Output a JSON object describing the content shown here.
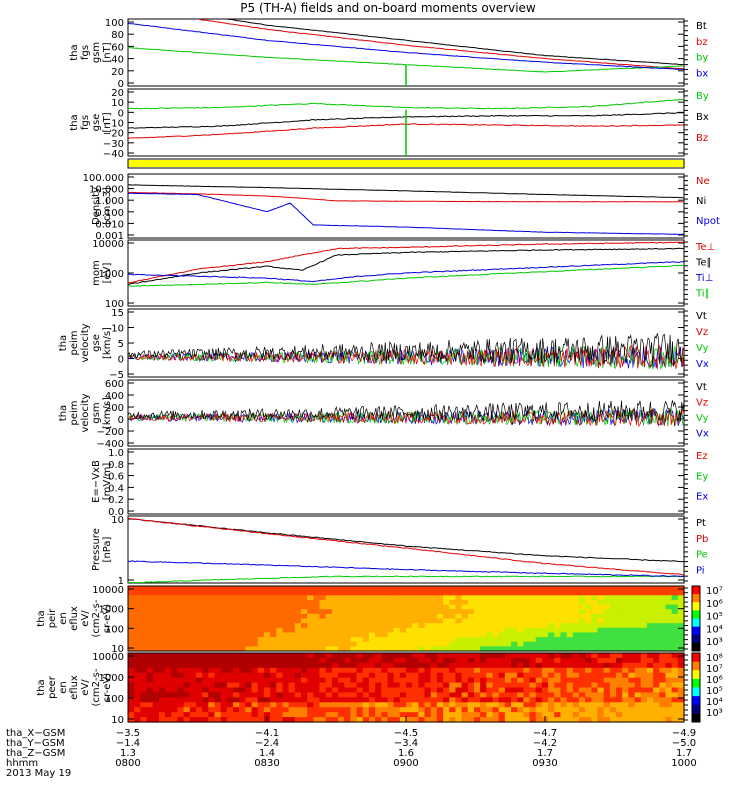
{
  "title": "P5 (TH-A) fields and on-board moments overview",
  "colors": {
    "black": "#000000",
    "red": "#e00000",
    "green": "#00c800",
    "blue": "#0000e0",
    "yellow": "#ffff00"
  },
  "chart_data": [
    {
      "type": "line",
      "panel": "fgs_gsm_mag",
      "ylabel": [
        "tha",
        "fgs",
        "gsm",
        "[nT]"
      ],
      "yticks": [
        "100",
        "80",
        "60",
        "40",
        "20",
        "0"
      ],
      "ylim": [
        -5,
        105
      ],
      "legend": [
        {
          "label": "Bt",
          "color": "#000000"
        },
        {
          "label": "bz",
          "color": "#e00000"
        },
        {
          "label": "by",
          "color": "#00c800"
        },
        {
          "label": "bx",
          "color": "#0000e0"
        }
      ],
      "series": [
        {
          "name": "Bt",
          "color": "#000000",
          "x": [
            0,
            60,
            120,
            180,
            240
          ],
          "y": [
            130,
            95,
            70,
            45,
            30
          ]
        },
        {
          "name": "bz",
          "color": "#e00000",
          "x": [
            0,
            60,
            120,
            180,
            240
          ],
          "y": [
            122,
            88,
            62,
            40,
            23
          ]
        },
        {
          "name": "by",
          "color": "#00c800",
          "x": [
            0,
            60,
            120,
            180,
            240
          ],
          "y": [
            58,
            42,
            30,
            18,
            28
          ]
        },
        {
          "name": "bx",
          "color": "#0000e0",
          "x": [
            0,
            60,
            120,
            180,
            240
          ],
          "y": [
            98,
            70,
            50,
            34,
            22
          ]
        }
      ]
    },
    {
      "type": "line",
      "panel": "fgs_gse_components",
      "ylabel": [
        "tha",
        "fgs",
        "gse",
        "[nT]"
      ],
      "yticks": [
        "20",
        "10",
        "0",
        "−10",
        "−20",
        "−30",
        "−40"
      ],
      "ylim": [
        -45,
        20
      ],
      "legend": [
        {
          "label": "By",
          "color": "#00c800"
        },
        {
          "label": "Bx",
          "color": "#000000"
        },
        {
          "label": "Bz",
          "color": "#e00000"
        }
      ],
      "series": [
        {
          "name": "By",
          "color": "#00c800",
          "x": [
            0,
            40,
            80,
            120,
            160,
            200,
            240
          ],
          "y": [
            1,
            2,
            6,
            2,
            1,
            3,
            10
          ]
        },
        {
          "name": "Bx",
          "color": "#000000",
          "x": [
            0,
            40,
            80,
            120,
            160,
            200,
            240
          ],
          "y": [
            -18,
            -16,
            -10,
            -7,
            -6,
            -6,
            -3
          ]
        },
        {
          "name": "Bz",
          "color": "#e00000",
          "x": [
            0,
            40,
            80,
            120,
            160,
            200,
            240
          ],
          "y": [
            -28,
            -24,
            -18,
            -14,
            -15,
            -16,
            -15
          ]
        }
      ]
    },
    {
      "type": "line",
      "panel": "density",
      "ylabel": [
        "Density",
        "[cm−3]"
      ],
      "yticks": [
        "100.000",
        "10.000",
        "1.000",
        "0.100",
        "0.010",
        "0.001"
      ],
      "ylim": [
        0.001,
        200
      ],
      "yscale": "log",
      "legend": [
        {
          "label": "Ne",
          "color": "#e00000"
        },
        {
          "label": "Ni",
          "color": "#000000"
        },
        {
          "label": "Npot",
          "color": "#0000e0"
        }
      ],
      "series": [
        {
          "name": "Ni",
          "color": "#000000",
          "x": [
            0,
            60,
            120,
            180,
            240
          ],
          "y": [
            25,
            15,
            8,
            4,
            2.2
          ]
        },
        {
          "name": "Ne",
          "color": "#e00000",
          "x": [
            0,
            30,
            60,
            75,
            90,
            120,
            180,
            240
          ],
          "y": [
            6,
            4.5,
            3,
            2,
            1.2,
            1.1,
            1.0,
            1.0
          ]
        },
        {
          "name": "Npot",
          "color": "#0000e0",
          "x": [
            0,
            30,
            60,
            70,
            80,
            100,
            120,
            180,
            240
          ],
          "y": [
            5,
            4,
            0.15,
            0.8,
            0.012,
            0.01,
            0.008,
            0.003,
            0.002
          ]
        }
      ]
    },
    {
      "type": "line",
      "panel": "temperature",
      "ylabel": [
        "mom",
        "[eV]"
      ],
      "yticks": [
        "10000",
        "1000",
        "100"
      ],
      "ylim": [
        100,
        10000
      ],
      "yscale": "log",
      "legend": [
        {
          "label": "Te⊥",
          "color": "#e00000"
        },
        {
          "label": "Te∥",
          "color": "#000000"
        },
        {
          "label": "Ti⊥",
          "color": "#0000e0"
        },
        {
          "label": "Ti∥",
          "color": "#00c800"
        }
      ],
      "series": [
        {
          "name": "Te⊥",
          "color": "#e00000",
          "x": [
            0,
            30,
            60,
            75,
            90,
            120,
            180,
            240
          ],
          "y": [
            500,
            1300,
            2200,
            3500,
            5500,
            6000,
            7500,
            8500
          ]
        },
        {
          "name": "Te∥",
          "color": "#000000",
          "x": [
            0,
            30,
            60,
            75,
            90,
            120,
            180,
            240
          ],
          "y": [
            450,
            1000,
            1600,
            1200,
            3500,
            4200,
            5000,
            5500
          ]
        },
        {
          "name": "Ti⊥",
          "color": "#0000e0",
          "x": [
            0,
            30,
            60,
            80,
            100,
            120,
            180,
            240
          ],
          "y": [
            900,
            800,
            700,
            550,
            800,
            1000,
            1500,
            2200
          ]
        },
        {
          "name": "Ti∥",
          "color": "#00c800",
          "x": [
            0,
            30,
            60,
            80,
            100,
            120,
            180,
            240
          ],
          "y": [
            400,
            450,
            520,
            450,
            560,
            700,
            1100,
            1700
          ]
        }
      ]
    },
    {
      "type": "line",
      "panel": "peim_velocity_gse",
      "ylabel": [
        "tha",
        "peim",
        "velocity",
        "gse",
        "[km/s]"
      ],
      "yticks": [
        "15",
        "10",
        "5",
        "0",
        "−5"
      ],
      "ylim": [
        -7,
        17
      ],
      "legend": [
        {
          "label": "Vt",
          "color": "#000000"
        },
        {
          "label": "Vz",
          "color": "#e00000"
        },
        {
          "label": "Vy",
          "color": "#00c800"
        },
        {
          "label": "Vx",
          "color": "#0000e0"
        }
      ]
    },
    {
      "type": "line",
      "panel": "peim_velocity_gsm",
      "ylabel": [
        "tha",
        "peim",
        "velocity",
        "gsm",
        "[km/s]"
      ],
      "yticks": [
        "600",
        "400",
        "200",
        "0",
        "−200",
        "−400"
      ],
      "ylim": [
        -450,
        600
      ],
      "legend": [
        {
          "label": "Vt",
          "color": "#000000"
        },
        {
          "label": "Vz",
          "color": "#e00000"
        },
        {
          "label": "Vy",
          "color": "#00c800"
        },
        {
          "label": "Vx",
          "color": "#0000e0"
        }
      ]
    },
    {
      "type": "line",
      "panel": "e_field",
      "ylabel": [
        "E=−VxB",
        "[mV/m]"
      ],
      "yticks": [
        "1.0",
        "0.8",
        "0.6",
        "0.4",
        "0.2",
        "0.0"
      ],
      "ylim": [
        0,
        1
      ],
      "legend": [
        {
          "label": "Ez",
          "color": "#e00000"
        },
        {
          "label": "Ey",
          "color": "#00c800"
        },
        {
          "label": "Ex",
          "color": "#0000e0"
        }
      ]
    },
    {
      "type": "line",
      "panel": "pressure",
      "ylabel": [
        "Pressure",
        "[nPa]"
      ],
      "yticks": [
        "10",
        "1"
      ],
      "ylim": [
        0.5,
        60
      ],
      "yscale": "log",
      "legend": [
        {
          "label": "Pt",
          "color": "#000000"
        },
        {
          "label": "Pb",
          "color": "#e00000"
        },
        {
          "label": "Pe",
          "color": "#00c800"
        },
        {
          "label": "Pi",
          "color": "#0000e0"
        }
      ],
      "series": [
        {
          "name": "Pt",
          "color": "#000000",
          "x": [
            0,
            60,
            120,
            180,
            240
          ],
          "y": [
            50,
            18,
            7,
            3.5,
            2.3
          ]
        },
        {
          "name": "Pb",
          "color": "#e00000",
          "x": [
            0,
            60,
            120,
            180,
            240
          ],
          "y": [
            50,
            17,
            6,
            2,
            0.9
          ]
        },
        {
          "name": "Pe",
          "color": "#00c800",
          "x": [
            0,
            30,
            60,
            90,
            120,
            180,
            240
          ],
          "y": [
            0.5,
            0.6,
            0.7,
            0.8,
            0.8,
            0.8,
            0.8
          ]
        },
        {
          "name": "Pi",
          "color": "#0000e0",
          "x": [
            0,
            60,
            120,
            180,
            240
          ],
          "y": [
            2.4,
            1.8,
            1.3,
            1.0,
            0.8
          ]
        }
      ]
    },
    {
      "type": "heatmap",
      "panel": "peir_en_eflux",
      "ylabel": [
        "tha",
        "peir",
        "en",
        "eflux",
        "eV/",
        "(cm2-s-",
        "sr-eV)"
      ],
      "yticks": [
        "10000",
        "1000",
        "100",
        "10"
      ],
      "colorbar_ticks": [
        "10⁷",
        "10⁶",
        "10⁵",
        "10⁴",
        "10³"
      ]
    },
    {
      "type": "heatmap",
      "panel": "peer_en_eflux",
      "ylabel": [
        "tha",
        "peer",
        "en",
        "eflux",
        "eV/",
        "(cm2-s-",
        "sr-eV)"
      ],
      "yticks": [
        "10000",
        "1000",
        "100",
        "10"
      ],
      "colorbar_ticks": [
        "10⁸",
        "10⁷",
        "10⁶",
        "10⁵",
        "10⁴",
        "10³"
      ]
    }
  ],
  "x_axis": {
    "rows": [
      {
        "label": "tha_X−GSM",
        "values": [
          "−3.5",
          "−4.1",
          "−4.5",
          "−4.7",
          "−4.9"
        ]
      },
      {
        "label": "tha_Y−GSM",
        "values": [
          "−1.4",
          "−2.4",
          "−3.4",
          "−4.2",
          "−5.0"
        ]
      },
      {
        "label": "tha_Z−GSM",
        "values": [
          "1.3",
          "1.4",
          "1.6",
          "1.7",
          "1.7"
        ]
      },
      {
        "label": "hhmm",
        "values": [
          "0800",
          "0830",
          "0900",
          "0930",
          "1000"
        ]
      }
    ],
    "date": "2013 May 19"
  }
}
